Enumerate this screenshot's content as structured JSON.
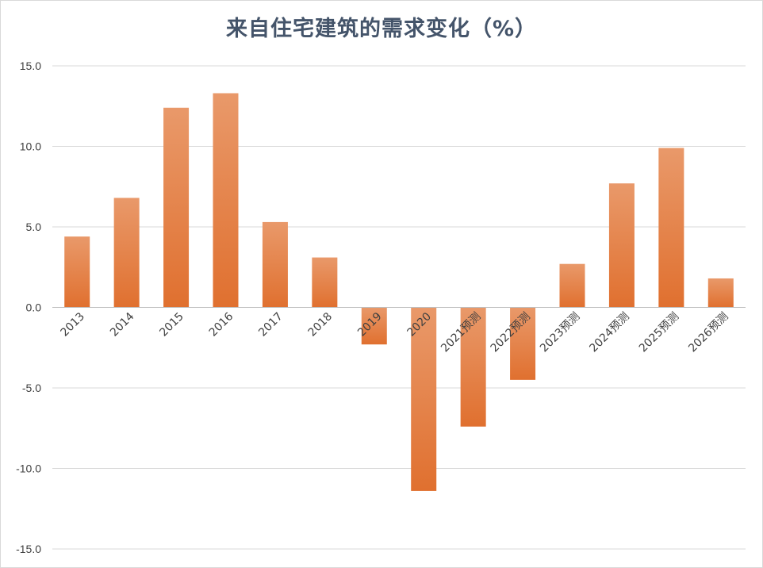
{
  "chart_data": {
    "type": "bar",
    "title": "来自住宅建筑的需求变化（%）",
    "xlabel": "",
    "ylabel": "",
    "categories": [
      "2013",
      "2014",
      "2015",
      "2016",
      "2017",
      "2018",
      "2019",
      "2020",
      "2021预测",
      "2022预测",
      "2023预测",
      "2024预测",
      "2025预测",
      "2026预测"
    ],
    "values": [
      4.4,
      6.8,
      12.4,
      13.3,
      5.3,
      3.1,
      -2.3,
      -11.4,
      -7.4,
      -4.5,
      2.7,
      7.7,
      9.9,
      1.8
    ],
    "ylim": [
      -15,
      15
    ],
    "yticks": [
      "-15.0",
      "-10.0",
      "-5.0",
      "0.0",
      "5.0",
      "10.0",
      "15.0"
    ],
    "grid": true,
    "legend": "none",
    "colors": {
      "bar_top": "#e9996a",
      "bar_bottom": "#e0702f",
      "grid": "#d9d9d9",
      "axis": "#bfbfbf",
      "title": "#44546a"
    }
  }
}
